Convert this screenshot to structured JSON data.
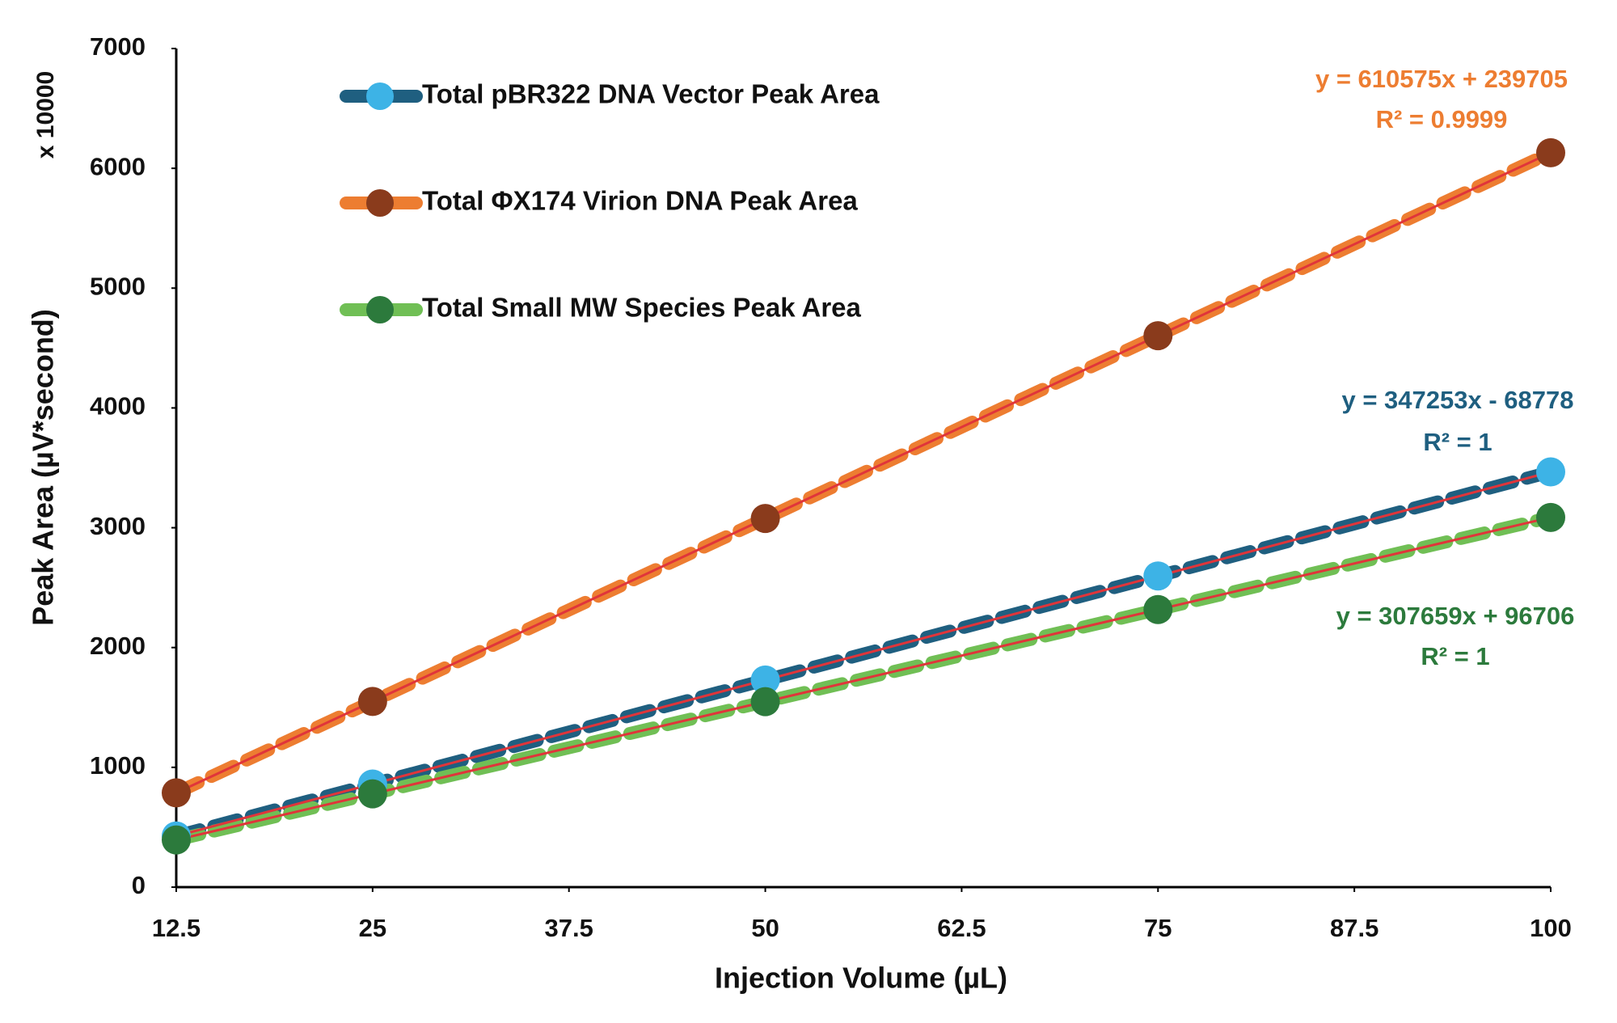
{
  "chart_data": {
    "type": "line",
    "x_label": "Injection Volume (µL)",
    "y_label": "Peak Area (µV*second)",
    "y_multiplier_label": "x 10000",
    "xlim": [
      12.5,
      100
    ],
    "xticks": [
      12.5,
      25,
      37.5,
      50,
      62.5,
      75,
      87.5,
      100
    ],
    "ylim": [
      0,
      7000
    ],
    "yticks": [
      0,
      1000,
      2000,
      3000,
      4000,
      5000,
      6000,
      7000
    ],
    "grid": false,
    "legend": "top-left",
    "trendline_color": "#e0353a",
    "x": [
      12.5,
      25,
      50,
      75,
      100
    ],
    "series": [
      {
        "name": "Total pBR322 DNA Vector Peak Area",
        "color": "#1f5f80",
        "marker_color": "#3db3e6",
        "values": [
          427,
          861,
          1729,
          2597,
          3466
        ],
        "equation": "y = 347253x - 68778",
        "r2": "R² = 1"
      },
      {
        "name": "Total ΦX174 Virion DNA Peak Area",
        "color": "#ed7d31",
        "marker_color": "#8a3b1c",
        "values": [
          787,
          1550,
          3077,
          4603,
          6130
        ],
        "equation": "y = 610575x + 239705",
        "r2": "R² = 0.9999"
      },
      {
        "name": "Total Small MW Species Peak Area",
        "color": "#70bf55",
        "marker_color": "#2c7a3c",
        "values": [
          394,
          779,
          1548,
          2317,
          3086
        ],
        "equation": "y = 307659x + 96706",
        "r2": "R² = 1"
      }
    ]
  }
}
